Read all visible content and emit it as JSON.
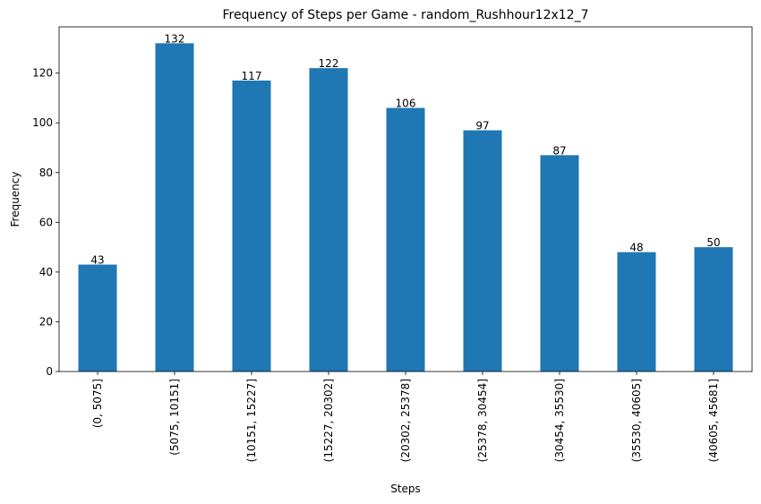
{
  "chart_data": {
    "type": "bar",
    "title": "Frequency of Steps per Game - random_Rushhour12x12_7",
    "xlabel": "Steps",
    "ylabel": "Frequency",
    "categories": [
      "(0, 5075]",
      "(5075, 10151]",
      "(10151, 15227]",
      "(15227, 20302]",
      "(20302, 25378]",
      "(25378, 30454]",
      "(30454, 35530]",
      "(35530, 40605]",
      "(40605, 45681]"
    ],
    "values": [
      43,
      132,
      117,
      122,
      106,
      97,
      87,
      48,
      50
    ],
    "data_labels": [
      "43",
      "132",
      "117",
      "122",
      "106",
      "97",
      "87",
      "48",
      "50"
    ],
    "ylim": [
      0,
      138.6
    ],
    "yticks": [
      0,
      20,
      40,
      60,
      80,
      100,
      120
    ],
    "ytick_labels": [
      "0",
      "20",
      "40",
      "60",
      "80",
      "100",
      "120"
    ],
    "bar_color": "#1f77b4",
    "grid": false,
    "legend": "none"
  }
}
